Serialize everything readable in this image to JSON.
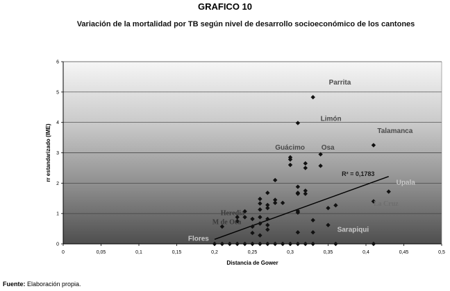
{
  "figure_label": "GRAFICO 10",
  "source": {
    "label": "Fuente:",
    "text": " Elaboración propia."
  },
  "chart_data": {
    "type": "scatter",
    "title": "Variación de la mortalidad por TB según nivel de desarrollo socioeconómico de los cantones",
    "xlabel": "Distancia de Gower",
    "ylabel": "rr estandarizado (IME)",
    "xlim": [
      0,
      0.5
    ],
    "ylim": [
      0,
      6
    ],
    "x_ticks": [
      "0",
      "0,05",
      "0,1",
      "0,15",
      "0,2",
      "0,25",
      "0,3",
      "0,35",
      "0,4",
      "0,45",
      "0,5"
    ],
    "y_ticks": [
      "0",
      "1",
      "2",
      "3",
      "4",
      "5",
      "6"
    ],
    "grid": "horizontal",
    "marker": "diamond",
    "background": "vertical gradient, dark gray at bottom to near-white at top",
    "trendline": {
      "x": [
        0.2,
        0.43
      ],
      "y": [
        0.15,
        2.22
      ],
      "label": "R² = 0,1783"
    },
    "annotations": [
      {
        "text": "Parrita",
        "x": 0.351,
        "y": 5.25
      },
      {
        "text": "Limón",
        "x": 0.34,
        "y": 4.05
      },
      {
        "text": "Talamanca",
        "x": 0.415,
        "y": 3.65
      },
      {
        "text": "Guácimo",
        "x": 0.28,
        "y": 3.1
      },
      {
        "text": "Osa",
        "x": 0.341,
        "y": 3.1
      },
      {
        "text": "Upala",
        "x": 0.44,
        "y": 1.95
      },
      {
        "text": "La Cruz",
        "x": 0.41,
        "y": 1.25
      },
      {
        "text": "Heredia",
        "x": 0.208,
        "y": 0.95
      },
      {
        "text": "M de Oca",
        "x": 0.197,
        "y": 0.65
      },
      {
        "text": "Sarapiqui",
        "x": 0.362,
        "y": 0.4
      },
      {
        "text": "Flores",
        "x": 0.165,
        "y": 0.1
      }
    ],
    "points": [
      [
        0.2,
        0.0
      ],
      [
        0.21,
        0.57
      ],
      [
        0.21,
        0.0
      ],
      [
        0.22,
        0.0
      ],
      [
        0.23,
        0.88
      ],
      [
        0.23,
        0.75
      ],
      [
        0.23,
        0.0
      ],
      [
        0.24,
        1.07
      ],
      [
        0.24,
        0.88
      ],
      [
        0.24,
        0.0
      ],
      [
        0.25,
        0.82
      ],
      [
        0.25,
        0.57
      ],
      [
        0.25,
        0.36
      ],
      [
        0.25,
        0.0
      ],
      [
        0.26,
        1.48
      ],
      [
        0.26,
        1.33
      ],
      [
        0.26,
        1.13
      ],
      [
        0.26,
        0.88
      ],
      [
        0.26,
        0.67
      ],
      [
        0.26,
        0.28
      ],
      [
        0.26,
        0.0
      ],
      [
        0.27,
        1.68
      ],
      [
        0.27,
        1.28
      ],
      [
        0.27,
        1.18
      ],
      [
        0.27,
        0.82
      ],
      [
        0.27,
        0.62
      ],
      [
        0.27,
        0.47
      ],
      [
        0.27,
        0.0
      ],
      [
        0.28,
        2.1
      ],
      [
        0.28,
        1.45
      ],
      [
        0.28,
        1.35
      ],
      [
        0.28,
        0.0
      ],
      [
        0.29,
        1.35
      ],
      [
        0.29,
        0.0
      ],
      [
        0.3,
        2.85
      ],
      [
        0.3,
        2.78
      ],
      [
        0.3,
        2.6
      ],
      [
        0.3,
        0.0
      ],
      [
        0.31,
        3.98
      ],
      [
        0.31,
        1.88
      ],
      [
        0.31,
        1.68
      ],
      [
        0.31,
        1.65
      ],
      [
        0.31,
        1.08
      ],
      [
        0.31,
        1.03
      ],
      [
        0.31,
        0.38
      ],
      [
        0.31,
        0.0
      ],
      [
        0.32,
        2.65
      ],
      [
        0.32,
        2.5
      ],
      [
        0.32,
        1.75
      ],
      [
        0.32,
        1.65
      ],
      [
        0.32,
        0.0
      ],
      [
        0.33,
        4.83
      ],
      [
        0.33,
        0.78
      ],
      [
        0.33,
        0.38
      ],
      [
        0.33,
        0.0
      ],
      [
        0.34,
        2.95
      ],
      [
        0.34,
        2.57
      ],
      [
        0.35,
        1.18
      ],
      [
        0.35,
        0.62
      ],
      [
        0.36,
        1.27
      ],
      [
        0.36,
        0.0
      ],
      [
        0.41,
        3.25
      ],
      [
        0.41,
        1.4
      ],
      [
        0.41,
        0.0
      ],
      [
        0.43,
        1.72
      ]
    ]
  }
}
